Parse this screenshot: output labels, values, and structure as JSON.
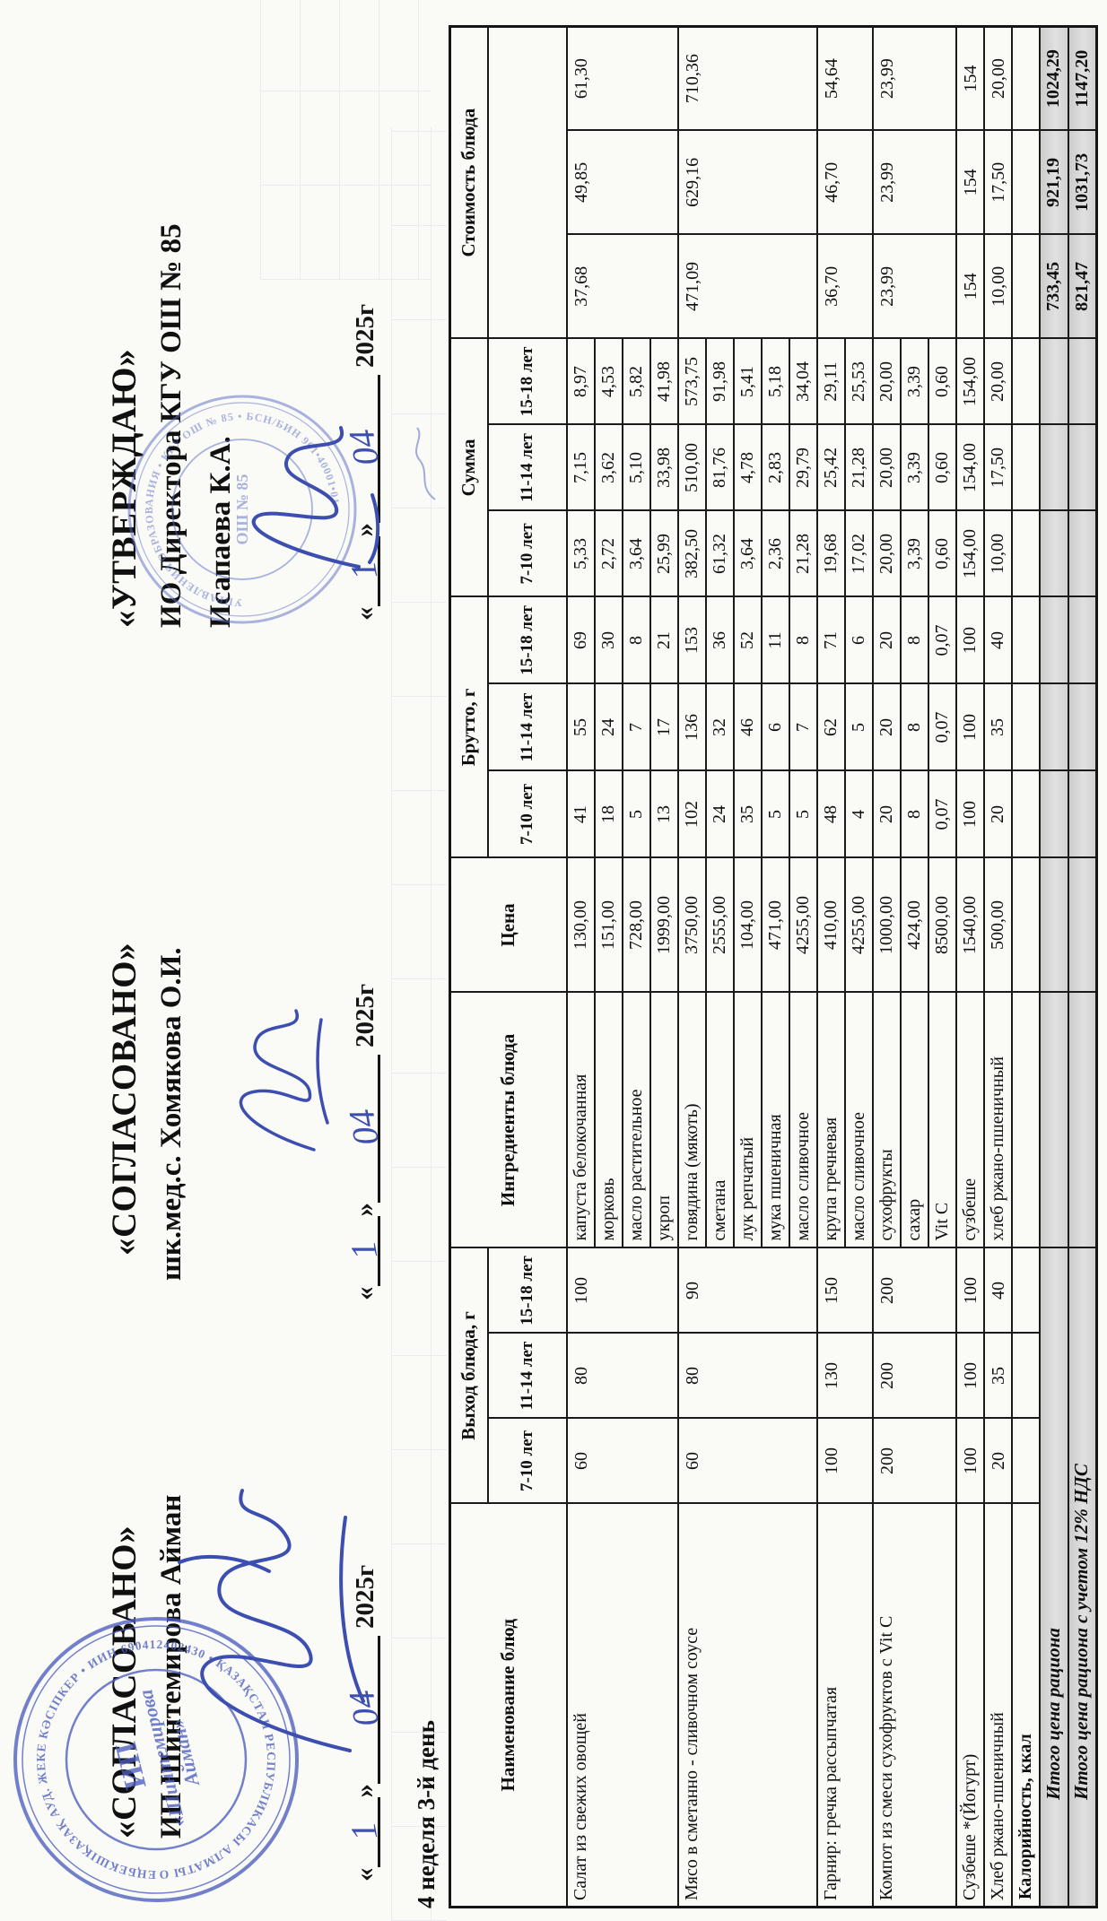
{
  "week_label": "4 неделя 3-й день",
  "blocks": [
    {
      "title": "«СОГЛАСОВАНО»",
      "line2": "ИП Шинтемирова Айман",
      "date": {
        "open": "«",
        "day": "1",
        "close": "»",
        "month": "04",
        "year": "2025г"
      }
    },
    {
      "title": "«СОГЛАСОВАНО»",
      "line2": "шк.мед.с. Хомякова О.И.",
      "date": {
        "open": "«",
        "day": "1",
        "close": "»",
        "month": "04",
        "year": "2025г"
      }
    },
    {
      "title": "«УТВЕРЖДАЮ»",
      "line2": "ИО Директора КГУ ОШ № 85",
      "line3": "Исапаева К.А.",
      "date": {
        "open": "«",
        "day": "1",
        "close": "»",
        "month": "04",
        "year": "2025г"
      }
    }
  ],
  "stamps": {
    "shintemirova": {
      "ring_text": "ЕҢБЕКШІҚАЗАҚ АУД. ЖЕКЕ КӘСІПКЕР • ИИН 690412402430 • ҚАЗАҚСТАН РЕСПУБЛИКАСЫ АЛМАТЫ ОБЛ. ЕНБЕКШИКАЗАХСКИЙ Р-Н ИНДИВ. ПРЕДПРИНИМАТЕЛЬ • РК АЛМАТИНСКАЯ ОБЛ. ",
      "center1": "ИП",
      "center2": "«Шинтемирова",
      "center3": "Айман»"
    },
    "school": {
      "ring_text": "УПРАВЛЕНИЯ ОБРАЗОВАНИЯ • КГУ ОШ № 85 • БСН/БИН 961•40001•01 • ",
      "center": "ОШ № 85"
    }
  },
  "table": {
    "headers": {
      "dish": "Наименование блюд",
      "yield": "Выход блюда, г",
      "ingredients": "Ингредиенты блюда",
      "price": "Цена",
      "brutto": "Брутто, г",
      "sum": "Сумма",
      "cost": "Стоимость блюда",
      "ages": [
        "7-10 лет",
        "11-14 лет",
        "15-18 лет"
      ]
    },
    "dishes": [
      {
        "name": "Салат из свежих овощей",
        "yield": [
          "60",
          "80",
          "100"
        ],
        "cost": [
          "37,68",
          "49,85",
          "61,30"
        ],
        "ingredients": [
          {
            "name": "капуста белокочанная",
            "price": "130,00",
            "brutto": [
              "41",
              "55",
              "69"
            ],
            "sum": [
              "5,33",
              "7,15",
              "8,97"
            ]
          },
          {
            "name": "морковь",
            "price": "151,00",
            "brutto": [
              "18",
              "24",
              "30"
            ],
            "sum": [
              "2,72",
              "3,62",
              "4,53"
            ]
          },
          {
            "name": "масло растительное",
            "price": "728,00",
            "brutto": [
              "5",
              "7",
              "8"
            ],
            "sum": [
              "3,64",
              "5,10",
              "5,82"
            ]
          },
          {
            "name": "укроп",
            "price": "1999,00",
            "brutto": [
              "13",
              "17",
              "21"
            ],
            "sum": [
              "25,99",
              "33,98",
              "41,98"
            ]
          }
        ]
      },
      {
        "name": "Мясо в сметанно - сливочном соусе",
        "yield": [
          "60",
          "80",
          "90"
        ],
        "cost": [
          "471,09",
          "629,16",
          "710,36"
        ],
        "ingredients": [
          {
            "name": "говядина (мякоть)",
            "price": "3750,00",
            "brutto": [
              "102",
              "136",
              "153"
            ],
            "sum": [
              "382,50",
              "510,00",
              "573,75"
            ]
          },
          {
            "name": "сметана",
            "price": "2555,00",
            "brutto": [
              "24",
              "32",
              "36"
            ],
            "sum": [
              "61,32",
              "81,76",
              "91,98"
            ]
          },
          {
            "name": "лук репчатый",
            "price": "104,00",
            "brutto": [
              "35",
              "46",
              "52"
            ],
            "sum": [
              "3,64",
              "4,78",
              "5,41"
            ]
          },
          {
            "name": "мука пшеничная",
            "price": "471,00",
            "brutto": [
              "5",
              "6",
              "11"
            ],
            "sum": [
              "2,36",
              "2,83",
              "5,18"
            ]
          },
          {
            "name": "масло сливочное",
            "price": "4255,00",
            "brutto": [
              "5",
              "7",
              "8"
            ],
            "sum": [
              "21,28",
              "29,79",
              "34,04"
            ]
          }
        ]
      },
      {
        "name": "Гарнир: гречка рассыпчатая",
        "yield": [
          "100",
          "130",
          "150"
        ],
        "cost": [
          "36,70",
          "46,70",
          "54,64"
        ],
        "ingredients": [
          {
            "name": "крупа гречневая",
            "price": "410,00",
            "brutto": [
              "48",
              "62",
              "71"
            ],
            "sum": [
              "19,68",
              "25,42",
              "29,11"
            ]
          },
          {
            "name": "масло сливочное",
            "price": "4255,00",
            "brutto": [
              "4",
              "5",
              "6"
            ],
            "sum": [
              "17,02",
              "21,28",
              "25,53"
            ]
          }
        ]
      },
      {
        "name": "Компот из смеси сухофруктов с Vit C",
        "yield": [
          "200",
          "200",
          "200"
        ],
        "cost": [
          "23,99",
          "23,99",
          "23,99"
        ],
        "ingredients": [
          {
            "name": "сухофрукты",
            "price": "1000,00",
            "brutto": [
              "20",
              "20",
              "20"
            ],
            "sum": [
              "20,00",
              "20,00",
              "20,00"
            ]
          },
          {
            "name": "сахар",
            "price": "424,00",
            "brutto": [
              "8",
              "8",
              "8"
            ],
            "sum": [
              "3,39",
              "3,39",
              "3,39"
            ]
          },
          {
            "name": "Vit C",
            "price": "8500,00",
            "brutto": [
              "0,07",
              "0,07",
              "0,07"
            ],
            "sum": [
              "0,60",
              "0,60",
              "0,60"
            ]
          }
        ]
      },
      {
        "name": "Сузбеше *(Йогурт)",
        "yield": [
          "100",
          "100",
          "100"
        ],
        "cost": [
          "154",
          "154",
          "154"
        ],
        "ingredients": [
          {
            "name": "сузбеше",
            "price": "1540,00",
            "brutto": [
              "100",
              "100",
              "100"
            ],
            "sum": [
              "154,00",
              "154,00",
              "154,00"
            ]
          }
        ]
      },
      {
        "name": "Хлеб ржано-пшеничный",
        "yield": [
          "20",
          "35",
          "40"
        ],
        "cost": [
          "10,00",
          "17,50",
          "20,00"
        ],
        "ingredients": [
          {
            "name": "хлеб ржано-пшеничный",
            "price": "500,00",
            "brutto": [
              "20",
              "35",
              "40"
            ],
            "sum": [
              "10,00",
              "17,50",
              "20,00"
            ]
          }
        ]
      }
    ],
    "calories_label": "Калорийность, ккал",
    "totals": [
      {
        "label": "Итого цена рациона",
        "values": [
          "733,45",
          "921,19",
          "1024,29"
        ]
      },
      {
        "label": "Итого цена рациона с учетом 12% НДС",
        "values": [
          "821,47",
          "1031,73",
          "1147,20"
        ]
      }
    ]
  },
  "colors": {
    "ink": "#101010",
    "stamp_blue": "#4d5fc0",
    "signature_blue": "#3c4eb0",
    "shade_gray": "#d6d6d6"
  }
}
